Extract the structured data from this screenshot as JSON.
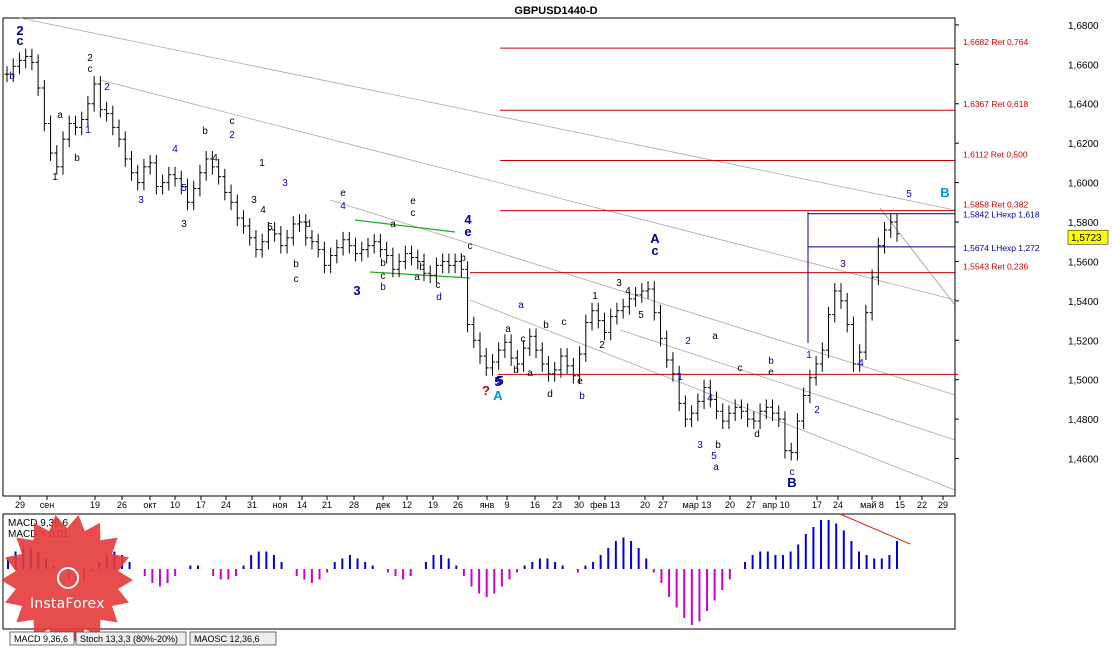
{
  "chart_data": {
    "type": "line",
    "title": "GBPUSD1440-D",
    "y_ticks": [
      "1,6800",
      "1,6600",
      "1,6400",
      "1,6200",
      "1,6000",
      "1,5800",
      "1,5600",
      "1,5400",
      "1,5200",
      "1,5000",
      "1,4800",
      "1,4600"
    ],
    "y_tick_values": [
      1.68,
      1.66,
      1.64,
      1.62,
      1.6,
      1.58,
      1.56,
      1.54,
      1.52,
      1.5,
      1.48,
      1.46
    ],
    "ylim": [
      1.441,
      1.6835
    ],
    "current_price": "1,5723",
    "current_price_value": 1.5723,
    "x_ticks": [
      "29",
      "сен",
      "19",
      "26",
      "окт",
      "10",
      "17",
      "24",
      "31",
      "ноя",
      "14",
      "21",
      "28",
      "дек",
      "12",
      "19",
      "26",
      "янв",
      "9",
      "16",
      "23",
      "30",
      "фев 13",
      "20",
      "27",
      "мар 13",
      "20",
      "27",
      "апр 10",
      "17",
      "24",
      "май 8",
      "15",
      "22",
      "29"
    ],
    "close_series": [
      1.655,
      1.659,
      1.662,
      1.664,
      1.661,
      1.648,
      1.63,
      1.615,
      1.608,
      1.622,
      1.63,
      1.628,
      1.632,
      1.64,
      1.65,
      1.637,
      1.635,
      1.628,
      1.622,
      1.612,
      1.605,
      1.6,
      1.608,
      1.61,
      1.598,
      1.6,
      1.604,
      1.602,
      1.598,
      1.59,
      1.597,
      1.605,
      1.612,
      1.608,
      1.603,
      1.595,
      1.59,
      1.582,
      1.578,
      1.572,
      1.566,
      1.57,
      1.576,
      1.574,
      1.568,
      1.572,
      1.579,
      1.58,
      1.572,
      1.57,
      1.566,
      1.558,
      1.563,
      1.567,
      1.571,
      1.568,
      1.564,
      1.566,
      1.568,
      1.57,
      1.566,
      1.563,
      1.556,
      1.56,
      1.564,
      1.562,
      1.56,
      1.554,
      1.553,
      1.558,
      1.56,
      1.558,
      1.56,
      1.556,
      1.528,
      1.52,
      1.512,
      1.506,
      1.509,
      1.515,
      1.519,
      1.511,
      1.508,
      1.516,
      1.522,
      1.515,
      1.508,
      1.503,
      1.505,
      1.512,
      1.507,
      1.502,
      1.513,
      1.529,
      1.535,
      1.53,
      1.524,
      1.532,
      1.535,
      1.537,
      1.541,
      1.543,
      1.545,
      1.546,
      1.534,
      1.521,
      1.51,
      1.503,
      1.488,
      1.48,
      1.483,
      1.489,
      1.496,
      1.49,
      1.484,
      1.479,
      1.483,
      1.486,
      1.484,
      1.48,
      1.479,
      1.484,
      1.486,
      1.483,
      1.48,
      1.464,
      1.463,
      1.479,
      1.492,
      1.501,
      1.508,
      1.515,
      1.533,
      1.545,
      1.54,
      1.528,
      1.508,
      1.514,
      1.534,
      1.552,
      1.568,
      1.576,
      1.58,
      1.574
    ],
    "annotations": {
      "fib_levels": [
        {
          "label": "1,6682 Ret 0,764",
          "value": 1.6682
        },
        {
          "label": "1,6367 Ret 0,618",
          "value": 1.6367
        },
        {
          "label": "1,6112 Ret 0,500",
          "value": 1.6112
        },
        {
          "label": "1,5858 Ret 0,382",
          "value": 1.5858
        },
        {
          "label": "1,5543 Ret 0,236",
          "value": 1.5543
        }
      ],
      "extension_levels": [
        {
          "label": "1,5842 LHexp 1,618",
          "value": 1.5842
        },
        {
          "label": "1,5674 LHexp 1,272",
          "value": 1.5674
        }
      ],
      "support_level_value": 1.5027,
      "wave_labels": [
        {
          "text": "2",
          "color": "#000099",
          "size": "big"
        },
        {
          "text": "c",
          "color": "#000099",
          "size": "big"
        },
        {
          "text": "b",
          "color": "#000099",
          "size": "small"
        },
        {
          "text": "1",
          "color": "#000000",
          "size": "small"
        },
        {
          "text": "a",
          "color": "#000000",
          "size": "small"
        },
        {
          "text": "b",
          "color": "#000000",
          "size": "small"
        },
        {
          "text": "2",
          "color": "#000000",
          "size": "small"
        },
        {
          "text": "c",
          "color": "#000000",
          "size": "small"
        },
        {
          "text": "1",
          "color": "#0000cc",
          "size": "small"
        },
        {
          "text": "2",
          "color": "#0000cc",
          "size": "small"
        },
        {
          "text": "3",
          "color": "#0000cc",
          "size": "small"
        },
        {
          "text": "4",
          "color": "#0000cc",
          "size": "small"
        },
        {
          "text": "5",
          "color": "#0000cc",
          "size": "small"
        },
        {
          "text": "3",
          "color": "#000000",
          "size": "small"
        },
        {
          "text": "b",
          "color": "#000000",
          "size": "small"
        },
        {
          "text": "4",
          "color": "#000000",
          "size": "small"
        },
        {
          "text": "c",
          "color": "#000000",
          "size": "small"
        },
        {
          "text": "2",
          "color": "#0000cc",
          "size": "small"
        },
        {
          "text": "1",
          "color": "#000000",
          "size": "small"
        },
        {
          "text": "3",
          "color": "#000000",
          "size": "small"
        },
        {
          "text": "4",
          "color": "#000000",
          "size": "small"
        },
        {
          "text": "5",
          "color": "#000000",
          "size": "small"
        },
        {
          "text": "3",
          "color": "#0000cc",
          "size": "small"
        },
        {
          "text": "b",
          "color": "#000000",
          "size": "small"
        },
        {
          "text": "c",
          "color": "#000000",
          "size": "small"
        },
        {
          "text": "d",
          "color": "#000000",
          "size": "small"
        },
        {
          "text": "e",
          "color": "#000000",
          "size": "small"
        },
        {
          "text": "4",
          "color": "#0000cc",
          "size": "small"
        },
        {
          "text": "5",
          "color": "#000099",
          "size": "big"
        },
        {
          "text": "3",
          "color": "#000099",
          "size": "big"
        },
        {
          "text": "b",
          "color": "#000000",
          "size": "small"
        },
        {
          "text": "c",
          "color": "#000000",
          "size": "small"
        },
        {
          "text": "b",
          "color": "#000099",
          "size": "small"
        },
        {
          "text": "a",
          "color": "#000000",
          "size": "small"
        },
        {
          "text": "e",
          "color": "#000000",
          "size": "small"
        },
        {
          "text": "c",
          "color": "#000000",
          "size": "small"
        },
        {
          "text": "b",
          "color": "#000000",
          "size": "small"
        },
        {
          "text": "a",
          "color": "#000000",
          "size": "small"
        },
        {
          "text": "c",
          "color": "#000000",
          "size": "small"
        },
        {
          "text": "d",
          "color": "#000099",
          "size": "small"
        },
        {
          "text": "4",
          "color": "#000099",
          "size": "big"
        },
        {
          "text": "e",
          "color": "#000099",
          "size": "big"
        },
        {
          "text": "c",
          "color": "#000000",
          "size": "small"
        },
        {
          "text": "b",
          "color": "#000000",
          "size": "small"
        },
        {
          "text": "5",
          "color": "#000099",
          "size": "big"
        },
        {
          "text": "?",
          "color": "#cc0000",
          "size": "big"
        },
        {
          "text": "A",
          "color": "#0099cc",
          "size": "big"
        },
        {
          "text": "a",
          "color": "#000099",
          "size": "small"
        },
        {
          "text": "a",
          "color": "#000000",
          "size": "small"
        },
        {
          "text": "c",
          "color": "#000000",
          "size": "small"
        },
        {
          "text": "b",
          "color": "#000000",
          "size": "small"
        },
        {
          "text": "a",
          "color": "#000000",
          "size": "small"
        },
        {
          "text": "b",
          "color": "#000000",
          "size": "small"
        },
        {
          "text": "c",
          "color": "#000000",
          "size": "small"
        },
        {
          "text": "d",
          "color": "#000000",
          "size": "small"
        },
        {
          "text": "e",
          "color": "#000000",
          "size": "small"
        },
        {
          "text": "b",
          "color": "#000099",
          "size": "small"
        },
        {
          "text": "1",
          "color": "#000000",
          "size": "small"
        },
        {
          "text": "2",
          "color": "#000000",
          "size": "small"
        },
        {
          "text": "3",
          "color": "#000000",
          "size": "small"
        },
        {
          "text": "4",
          "color": "#000000",
          "size": "small"
        },
        {
          "text": "5",
          "color": "#000000",
          "size": "small"
        },
        {
          "text": "A",
          "color": "#000099",
          "size": "big"
        },
        {
          "text": "c",
          "color": "#000099",
          "size": "big"
        },
        {
          "text": "2",
          "color": "#0000cc",
          "size": "small"
        },
        {
          "text": "1",
          "color": "#0000cc",
          "size": "small"
        },
        {
          "text": "a",
          "color": "#000000",
          "size": "small"
        },
        {
          "text": "4",
          "color": "#0000cc",
          "size": "small"
        },
        {
          "text": "3",
          "color": "#0000cc",
          "size": "small"
        },
        {
          "text": "b",
          "color": "#000000",
          "size": "small"
        },
        {
          "text": "5",
          "color": "#0000cc",
          "size": "small"
        },
        {
          "text": "a",
          "color": "#000099",
          "size": "small"
        },
        {
          "text": "c",
          "color": "#000000",
          "size": "small"
        },
        {
          "text": "d",
          "color": "#000000",
          "size": "small"
        },
        {
          "text": "e",
          "color": "#000000",
          "size": "small"
        },
        {
          "text": "b",
          "color": "#000099",
          "size": "small"
        },
        {
          "text": "c",
          "color": "#000099",
          "size": "small"
        },
        {
          "text": "B",
          "color": "#000099",
          "size": "big"
        },
        {
          "text": "1",
          "color": "#0000cc",
          "size": "small"
        },
        {
          "text": "2",
          "color": "#0000cc",
          "size": "small"
        },
        {
          "text": "3",
          "color": "#0000cc",
          "size": "small"
        },
        {
          "text": "4",
          "color": "#0000cc",
          "size": "small"
        },
        {
          "text": "5",
          "color": "#0000cc",
          "size": "small"
        },
        {
          "text": "B",
          "color": "#0099cc",
          "size": "big"
        }
      ]
    },
    "macd": {
      "label_line1": "MACD 9,36,6",
      "label_line2": "MACD = 0,01",
      "values": [
        0.003,
        0.005,
        0.006,
        0.006,
        0.005,
        0.003,
        0.001,
        -0.001,
        -0.003,
        -0.004,
        -0.003,
        -0.001,
        0.002,
        0.004,
        0.005,
        0.004,
        0.002,
        0.0,
        -0.002,
        -0.004,
        -0.005,
        -0.004,
        -0.002,
        0.0,
        0.001,
        0.001,
        0.0,
        -0.002,
        -0.003,
        -0.003,
        -0.002,
        0.001,
        0.004,
        0.005,
        0.005,
        0.004,
        0.002,
        0.0,
        -0.002,
        -0.003,
        -0.004,
        -0.003,
        -0.001,
        0.002,
        0.003,
        0.004,
        0.003,
        0.002,
        0.001,
        0.0,
        -0.001,
        -0.002,
        -0.003,
        -0.002,
        0.0,
        0.002,
        0.004,
        0.004,
        0.003,
        0.001,
        -0.002,
        -0.005,
        -0.007,
        -0.008,
        -0.007,
        -0.005,
        -0.003,
        -0.001,
        0.001,
        0.002,
        0.003,
        0.003,
        0.002,
        0.001,
        0.0,
        -0.001,
        0.001,
        0.002,
        0.004,
        0.006,
        0.008,
        0.009,
        0.008,
        0.006,
        0.003,
        -0.001,
        -0.004,
        -0.008,
        -0.011,
        -0.014,
        -0.016,
        -0.015,
        -0.012,
        -0.009,
        -0.006,
        -0.003,
        0.0,
        0.002,
        0.004,
        0.005,
        0.005,
        0.004,
        0.004,
        0.005,
        0.007,
        0.01,
        0.012,
        0.014,
        0.014,
        0.013,
        0.011,
        0.008,
        0.005,
        0.004,
        0.003,
        0.003,
        0.004,
        0.008
      ],
      "divergence": true
    },
    "indicator_tabs": [
      "MACD 9,36,6",
      "Stoch 13,3,3 (80%-20%)",
      "MAOSC 12,36,6"
    ],
    "grid": false
  },
  "brand": {
    "name": "InstaForex",
    "color": "#e63a3a"
  },
  "colors": {
    "fib": "#cc0000",
    "ext": "#000099",
    "wave_blue": "#0000cc",
    "macd_pos": "#0000dd",
    "macd_neg": "#cc00cc",
    "channel": "#22aa22",
    "price_box": "#ffff00"
  }
}
